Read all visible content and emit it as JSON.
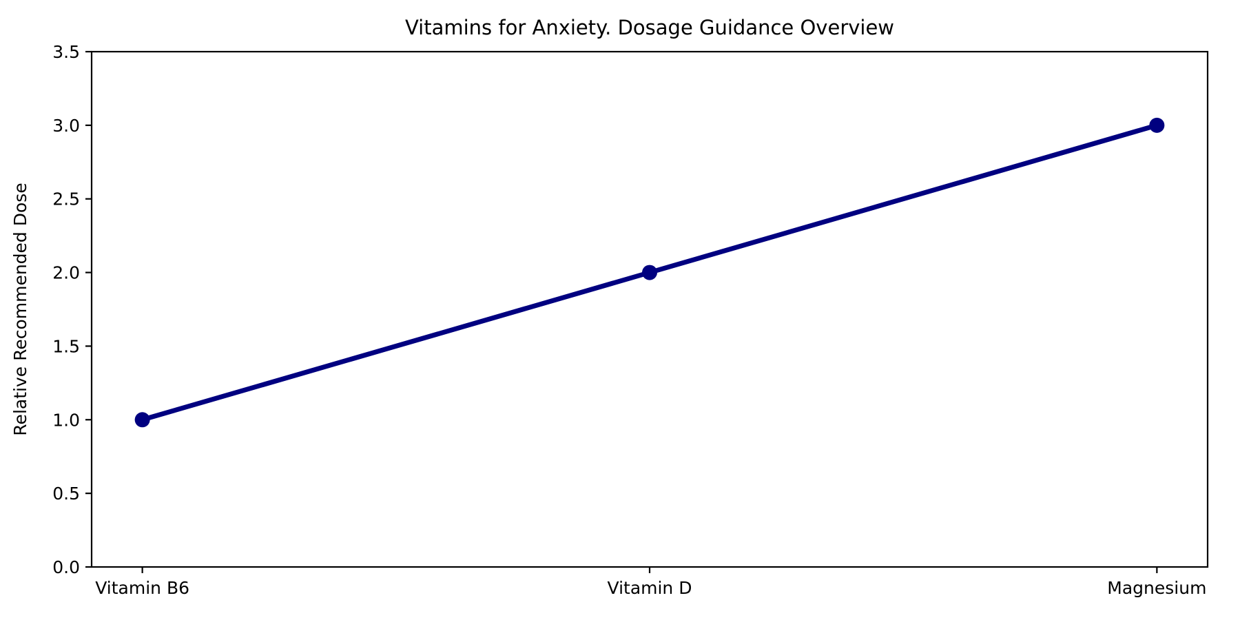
{
  "chart_data": {
    "type": "line",
    "title": "Vitamins for Anxiety. Dosage Guidance Overview",
    "xlabel": "",
    "ylabel": "Relative Recommended Dose",
    "categories": [
      "Vitamin B6",
      "Vitamin D",
      "Magnesium"
    ],
    "values": [
      1.0,
      2.0,
      3.0
    ],
    "ylim": [
      0.0,
      3.5
    ],
    "yticks": [
      0.0,
      0.5,
      1.0,
      1.5,
      2.0,
      2.5,
      3.0,
      3.5
    ],
    "ytick_labels": [
      "0.0",
      "0.5",
      "1.0",
      "1.5",
      "2.0",
      "2.5",
      "3.0",
      "3.5"
    ],
    "grid": false,
    "legend": "none",
    "colors": {
      "line": "#000080",
      "marker": "#000080",
      "axis": "#000000",
      "background": "#ffffff",
      "text": "#000000"
    },
    "style": {
      "line_width": 7,
      "marker_radius": 11,
      "spine_width": 2.2,
      "tick_length": 9
    }
  }
}
